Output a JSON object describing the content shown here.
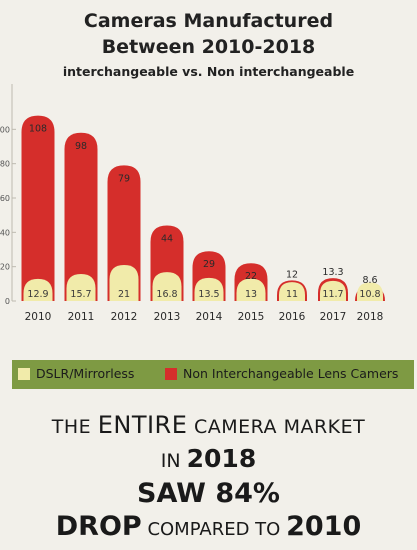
{
  "title_line1": "Cameras Manufactured",
  "title_line2": "Between 2010-2018",
  "subtitle": "interchangeable vs. Non interchangeable",
  "chart_data": {
    "type": "bar",
    "categories": [
      "2010",
      "2011",
      "2012",
      "2013",
      "2014",
      "2015",
      "2016",
      "2017",
      "2018"
    ],
    "series": [
      {
        "name": "Non Interchangeable Lens Camers",
        "values": [
          108,
          98,
          79,
          44,
          29,
          22,
          12,
          13.3,
          8.6
        ],
        "color": "#d52e2b"
      },
      {
        "name": "DSLR/Mirrorless",
        "values": [
          12.9,
          15.7,
          21,
          16.8,
          13.5,
          13,
          11,
          11.7,
          10.8
        ],
        "color": "#f1ebaa"
      }
    ],
    "ylim": [
      0,
      120
    ],
    "yticks": [
      "0",
      "20",
      "40",
      "60",
      "80",
      "100"
    ],
    "grid": false,
    "legend_position": "bottom"
  },
  "legend": {
    "item1": "DSLR/Mirrorless",
    "item2": "Non Interchangeable Lens Camers",
    "background": "#7e9a43"
  },
  "headline": {
    "line1_pre": "THE",
    "line1_big": "ENTIRE",
    "line1_post": "CAMERA MARKET",
    "line2_pre": "IN",
    "line2_big": "2018",
    "line3": "SAW 84%",
    "line4_big1": "DROP",
    "line4_small": "COMPARED TO",
    "line4_big2": "2010"
  }
}
